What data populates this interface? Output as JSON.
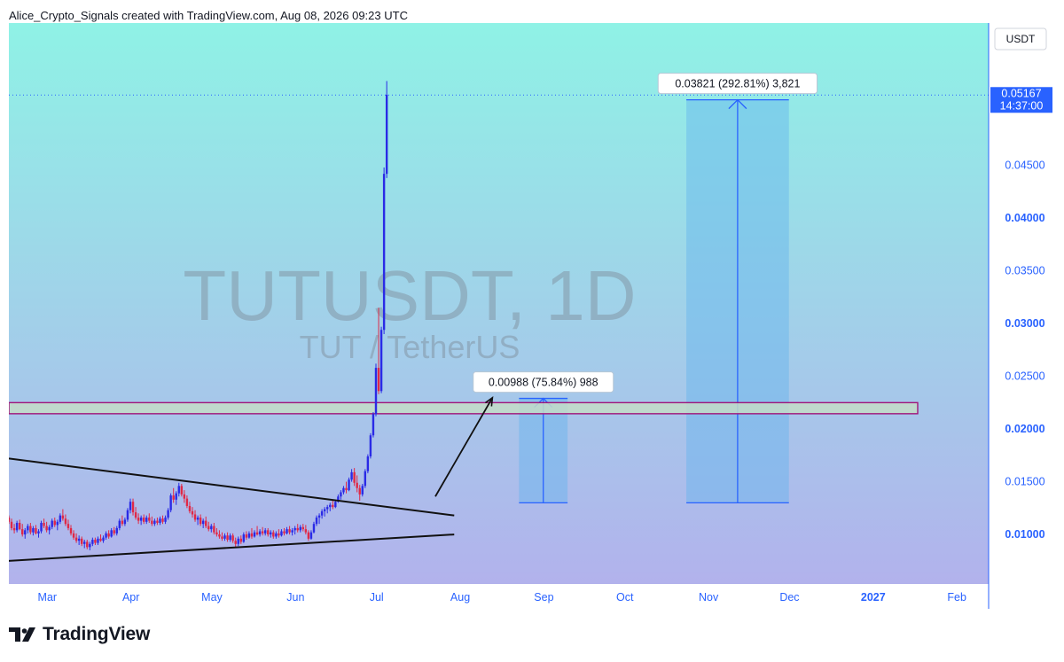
{
  "header": {
    "credit": "Alice_Crypto_Signals created with TradingView.com, Aug 08, 2026 09:23 UTC"
  },
  "watermark": {
    "symbol": "TUTUSDT, 1D",
    "name": "TUT / TetherUS"
  },
  "price_axis": {
    "currency": "USDT",
    "ticks": [
      "0.01000",
      "0.01500",
      "0.02000",
      "0.02500",
      "0.03000",
      "0.03500",
      "0.04000",
      "0.04500"
    ],
    "current_price": "0.05167",
    "countdown": "14:37:00"
  },
  "time_axis": {
    "labels": [
      "Mar",
      "Apr",
      "May",
      "Jun",
      "Jul",
      "Aug",
      "Sep",
      "Oct",
      "Nov",
      "Dec",
      "2027",
      "Feb"
    ]
  },
  "measurements": [
    {
      "label": "0.00988 (75.84%) 988"
    },
    {
      "label": "0.03821 (292.81%) 3,821"
    }
  ],
  "footer": {
    "brand": "TradingView"
  },
  "colors": {
    "bg_top": "#8ff2e6",
    "bg_bottom": "#b2b2ec",
    "up": "#2a2ae6",
    "down": "#e02846",
    "axis": "#2962ff",
    "zone_border": "#a0147a",
    "measure_fill": "#64b4ee",
    "measure_line": "#2962ff"
  },
  "chart_data": {
    "type": "candlestick",
    "symbol": "TUTUSDT",
    "interval": "1D",
    "ylim": [
      0.0053,
      0.0585
    ],
    "x_range": [
      "2026-02-22",
      "2027-02-20"
    ],
    "current_price": 0.05167,
    "resistance_zone": [
      0.02145,
      0.0225
    ],
    "triangle": {
      "upper": [
        [
          "2026-02-22",
          0.0172
        ],
        [
          "2026-08-06",
          0.0118
        ]
      ],
      "lower": [
        [
          "2026-02-22",
          0.0075
        ],
        [
          "2026-08-06",
          0.01
        ]
      ]
    },
    "move_arrow": [
      [
        "2026-07-30",
        0.0136
      ],
      [
        "2026-08-20",
        0.0229
      ]
    ],
    "measure_boxes": [
      {
        "x": [
          "2026-08-30",
          "2026-09-17"
        ],
        "y": [
          0.013,
          0.0229
        ],
        "label": "0.00988 (75.84%) 988"
      },
      {
        "x": [
          "2026-10-31",
          "2026-12-08"
        ],
        "y": [
          0.013,
          0.05122
        ],
        "label": "0.03821 (292.81%) 3,821"
      }
    ],
    "series": [
      {
        "values": [
          [
            0.0116,
            0.0118,
            0.011,
            0.0112
          ],
          [
            0.0112,
            0.0115,
            0.0104,
            0.0106
          ],
          [
            0.0106,
            0.011,
            0.0101,
            0.0104
          ],
          [
            0.0104,
            0.0113,
            0.0102,
            0.0111
          ],
          [
            0.0111,
            0.0114,
            0.0104,
            0.0105
          ],
          [
            0.0105,
            0.011,
            0.0098,
            0.01
          ],
          [
            0.01,
            0.0106,
            0.0096,
            0.0104
          ],
          [
            0.0104,
            0.011,
            0.0101,
            0.0108
          ],
          [
            0.0108,
            0.0111,
            0.01,
            0.0102
          ],
          [
            0.0102,
            0.0108,
            0.0099,
            0.0106
          ],
          [
            0.0106,
            0.0109,
            0.01,
            0.0101
          ],
          [
            0.0101,
            0.0105,
            0.0097,
            0.0103
          ],
          [
            0.0103,
            0.0113,
            0.0101,
            0.0111
          ],
          [
            0.0111,
            0.0115,
            0.0106,
            0.0108
          ],
          [
            0.0108,
            0.0112,
            0.0102,
            0.0104
          ],
          [
            0.0104,
            0.0109,
            0.01,
            0.0107
          ],
          [
            0.0107,
            0.0115,
            0.0105,
            0.0113
          ],
          [
            0.0113,
            0.0116,
            0.0107,
            0.0109
          ],
          [
            0.0109,
            0.0114,
            0.0104,
            0.0112
          ],
          [
            0.0112,
            0.012,
            0.011,
            0.0118
          ],
          [
            0.0118,
            0.0124,
            0.0113,
            0.0115
          ],
          [
            0.0115,
            0.0119,
            0.0108,
            0.011
          ],
          [
            0.011,
            0.0114,
            0.0104,
            0.0106
          ],
          [
            0.0106,
            0.0109,
            0.0099,
            0.0101
          ],
          [
            0.0101,
            0.0104,
            0.0095,
            0.0097
          ],
          [
            0.0097,
            0.0101,
            0.0092,
            0.0094
          ],
          [
            0.0094,
            0.0099,
            0.009,
            0.0096
          ],
          [
            0.0096,
            0.0098,
            0.0089,
            0.0091
          ],
          [
            0.0091,
            0.0095,
            0.0087,
            0.0093
          ],
          [
            0.0093,
            0.0095,
            0.0086,
            0.0088
          ],
          [
            0.0088,
            0.0093,
            0.0085,
            0.0091
          ],
          [
            0.0091,
            0.0097,
            0.0089,
            0.0095
          ],
          [
            0.0095,
            0.0097,
            0.009,
            0.0092
          ],
          [
            0.0092,
            0.0098,
            0.009,
            0.0096
          ],
          [
            0.0096,
            0.01,
            0.0093,
            0.0094
          ],
          [
            0.0094,
            0.0099,
            0.0092,
            0.0097
          ],
          [
            0.0097,
            0.0103,
            0.0095,
            0.0101
          ],
          [
            0.0101,
            0.0104,
            0.0096,
            0.0098
          ],
          [
            0.0098,
            0.0106,
            0.0097,
            0.0104
          ],
          [
            0.0104,
            0.0107,
            0.0099,
            0.0101
          ],
          [
            0.0101,
            0.0108,
            0.0099,
            0.0106
          ],
          [
            0.0106,
            0.0115,
            0.0104,
            0.0113
          ],
          [
            0.0113,
            0.0118,
            0.0108,
            0.011
          ],
          [
            0.011,
            0.0116,
            0.0108,
            0.0114
          ],
          [
            0.0114,
            0.0125,
            0.0112,
            0.0123
          ],
          [
            0.0123,
            0.0134,
            0.012,
            0.0131
          ],
          [
            0.0131,
            0.0134,
            0.0118,
            0.0121
          ],
          [
            0.0121,
            0.0126,
            0.0114,
            0.0116
          ],
          [
            0.0116,
            0.012,
            0.011,
            0.0113
          ],
          [
            0.0113,
            0.0118,
            0.0109,
            0.0116
          ],
          [
            0.0116,
            0.0119,
            0.011,
            0.0112
          ],
          [
            0.0112,
            0.0118,
            0.011,
            0.0116
          ],
          [
            0.0116,
            0.012,
            0.0111,
            0.0113
          ],
          [
            0.0113,
            0.0117,
            0.0108,
            0.011
          ],
          [
            0.011,
            0.0115,
            0.0108,
            0.0113
          ],
          [
            0.0113,
            0.0116,
            0.0109,
            0.0111
          ],
          [
            0.0111,
            0.0117,
            0.0109,
            0.0115
          ],
          [
            0.0115,
            0.0118,
            0.011,
            0.0112
          ],
          [
            0.0112,
            0.0118,
            0.011,
            0.0116
          ],
          [
            0.0116,
            0.0125,
            0.0114,
            0.0123
          ],
          [
            0.0123,
            0.0139,
            0.0121,
            0.0137
          ],
          [
            0.0137,
            0.0144,
            0.013,
            0.0133
          ],
          [
            0.0133,
            0.0141,
            0.0128,
            0.0139
          ],
          [
            0.0139,
            0.0149,
            0.0136,
            0.0146
          ],
          [
            0.0146,
            0.0148,
            0.0136,
            0.0138
          ],
          [
            0.0138,
            0.0142,
            0.013,
            0.0134
          ],
          [
            0.0134,
            0.0137,
            0.0125,
            0.0127
          ],
          [
            0.0127,
            0.0131,
            0.012,
            0.0122
          ],
          [
            0.0122,
            0.0126,
            0.0116,
            0.0119
          ],
          [
            0.0119,
            0.0123,
            0.0112,
            0.0114
          ],
          [
            0.0114,
            0.0118,
            0.0109,
            0.0116
          ],
          [
            0.0116,
            0.0119,
            0.0108,
            0.011
          ],
          [
            0.011,
            0.0115,
            0.0106,
            0.0113
          ],
          [
            0.0113,
            0.0117,
            0.0106,
            0.0108
          ],
          [
            0.0108,
            0.0112,
            0.0103,
            0.0105
          ],
          [
            0.0105,
            0.011,
            0.0102,
            0.0108
          ],
          [
            0.0108,
            0.0111,
            0.01,
            0.0102
          ],
          [
            0.0102,
            0.0106,
            0.0098,
            0.01
          ],
          [
            0.01,
            0.0104,
            0.0096,
            0.0098
          ],
          [
            0.0098,
            0.0102,
            0.0094,
            0.0096
          ],
          [
            0.0096,
            0.0101,
            0.0094,
            0.0099
          ],
          [
            0.0099,
            0.0102,
            0.0093,
            0.0095
          ],
          [
            0.0095,
            0.0101,
            0.0093,
            0.0099
          ],
          [
            0.0099,
            0.0101,
            0.0092,
            0.0094
          ],
          [
            0.0094,
            0.0097,
            0.0088,
            0.0091
          ],
          [
            0.0091,
            0.0098,
            0.0089,
            0.0096
          ],
          [
            0.0096,
            0.0099,
            0.0091,
            0.0093
          ],
          [
            0.0093,
            0.0102,
            0.0092,
            0.01
          ],
          [
            0.01,
            0.0103,
            0.0095,
            0.0097
          ],
          [
            0.0097,
            0.0103,
            0.0096,
            0.0101
          ],
          [
            0.0101,
            0.0106,
            0.0096,
            0.0098
          ],
          [
            0.0098,
            0.0104,
            0.0097,
            0.0102
          ],
          [
            0.0102,
            0.0108,
            0.0099,
            0.01
          ],
          [
            0.01,
            0.0105,
            0.0098,
            0.0103
          ],
          [
            0.0103,
            0.0107,
            0.0099,
            0.0101
          ],
          [
            0.0101,
            0.0106,
            0.0099,
            0.0104
          ],
          [
            0.0104,
            0.0106,
            0.0098,
            0.01
          ],
          [
            0.01,
            0.0104,
            0.0097,
            0.0102
          ],
          [
            0.0102,
            0.0104,
            0.0096,
            0.0098
          ],
          [
            0.0098,
            0.0103,
            0.0096,
            0.0101
          ],
          [
            0.0101,
            0.0105,
            0.0097,
            0.0099
          ],
          [
            0.0099,
            0.0105,
            0.0098,
            0.0103
          ],
          [
            0.0103,
            0.0106,
            0.0099,
            0.0101
          ],
          [
            0.0101,
            0.0107,
            0.01,
            0.0105
          ],
          [
            0.0105,
            0.0108,
            0.01,
            0.0102
          ],
          [
            0.0102,
            0.0106,
            0.0099,
            0.0104
          ],
          [
            0.0104,
            0.0108,
            0.01,
            0.0106
          ],
          [
            0.0106,
            0.011,
            0.0102,
            0.0104
          ],
          [
            0.0104,
            0.0109,
            0.0102,
            0.0107
          ],
          [
            0.0107,
            0.011,
            0.0103,
            0.0105
          ],
          [
            0.0105,
            0.0109,
            0.01,
            0.0102
          ],
          [
            0.0102,
            0.0104,
            0.0094,
            0.0096
          ],
          [
            0.0096,
            0.0104,
            0.0095,
            0.0102
          ],
          [
            0.0102,
            0.0112,
            0.0101,
            0.011
          ],
          [
            0.011,
            0.0118,
            0.0108,
            0.0116
          ],
          [
            0.0116,
            0.012,
            0.011,
            0.0118
          ],
          [
            0.0118,
            0.0124,
            0.0115,
            0.0122
          ],
          [
            0.0122,
            0.0126,
            0.0117,
            0.0124
          ],
          [
            0.0124,
            0.0128,
            0.012,
            0.0126
          ],
          [
            0.0126,
            0.013,
            0.0122,
            0.0128
          ],
          [
            0.0128,
            0.0132,
            0.0124,
            0.0126
          ],
          [
            0.0126,
            0.0133,
            0.0125,
            0.0131
          ],
          [
            0.0131,
            0.0138,
            0.013,
            0.0136
          ],
          [
            0.0136,
            0.0142,
            0.0133,
            0.014
          ],
          [
            0.014,
            0.0146,
            0.0138,
            0.0144
          ],
          [
            0.0144,
            0.015,
            0.0139,
            0.0142
          ],
          [
            0.0142,
            0.0154,
            0.0141,
            0.0152
          ],
          [
            0.0152,
            0.0162,
            0.015,
            0.0159
          ],
          [
            0.0159,
            0.0163,
            0.0146,
            0.0149
          ],
          [
            0.0149,
            0.0156,
            0.014,
            0.0144
          ],
          [
            0.0144,
            0.0147,
            0.0132,
            0.0138
          ],
          [
            0.0138,
            0.0148,
            0.0136,
            0.0146
          ],
          [
            0.0146,
            0.0162,
            0.0144,
            0.016
          ],
          [
            0.016,
            0.0176,
            0.0158,
            0.0174
          ],
          [
            0.0174,
            0.0196,
            0.0172,
            0.0194
          ],
          [
            0.0194,
            0.0216,
            0.0192,
            0.0214
          ],
          [
            0.0214,
            0.0262,
            0.0212,
            0.0258
          ],
          [
            0.0258,
            0.0315,
            0.0233,
            0.0236
          ],
          [
            0.0236,
            0.0297,
            0.0234,
            0.0294
          ],
          [
            0.0294,
            0.0448,
            0.029,
            0.0442
          ],
          [
            0.0442,
            0.053,
            0.0438,
            0.0517
          ]
        ]
      }
    ]
  }
}
